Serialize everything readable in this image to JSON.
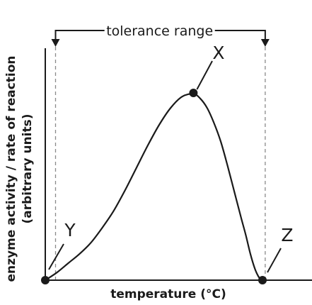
{
  "chart_data": {
    "type": "line",
    "title": "",
    "xlabel": "temperature (°C)",
    "ylabel_lines": [
      "enzyme activity / rate of reaction",
      "(arbitrary units)"
    ],
    "xlim": [
      0,
      100
    ],
    "ylim": [
      0,
      100
    ],
    "ticks": "none",
    "grid": false,
    "legend": "none",
    "series": [
      {
        "x": [
          0,
          5,
          10,
          15,
          20,
          25,
          30,
          35,
          40,
          45,
          50,
          55,
          60,
          65,
          68,
          71,
          74,
          77,
          80,
          83,
          86,
          88,
          90,
          92,
          93.5,
          94.5,
          95.3
        ],
        "y": [
          0,
          4,
          9,
          14,
          20,
          28,
          37,
          48,
          60,
          72,
          83,
          92,
          98,
          99.5,
          97,
          92,
          84,
          74,
          61,
          47,
          33,
          24,
          14,
          6,
          2,
          0.5,
          0
        ]
      }
    ],
    "range_annotation": {
      "label": "tolerance range",
      "x_start": 4.5,
      "x_end": 96.5,
      "line_style": "dashed"
    },
    "points": [
      {
        "label": "X",
        "x": 65,
        "y": 100
      },
      {
        "label": "Y",
        "x": 0,
        "y": 0
      },
      {
        "label": "Z",
        "x": 95.3,
        "y": 0
      }
    ]
  }
}
